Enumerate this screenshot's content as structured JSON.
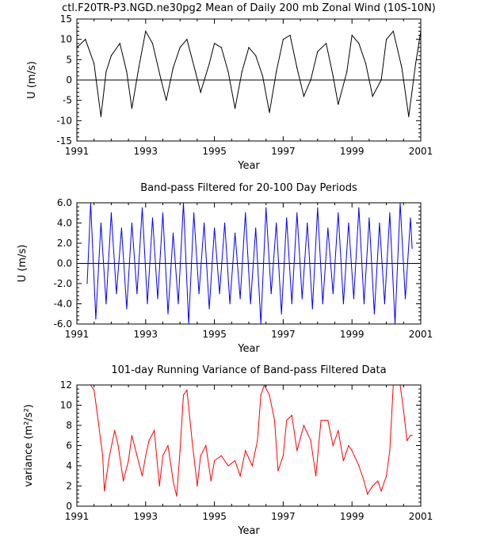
{
  "chart_data": [
    {
      "type": "line",
      "title": "ctl.F20TR-P3.NGD.ne30pg2 Mean of Daily 200 mb Zonal Wind (10S-10N)",
      "xlabel": "Year",
      "ylabel": "U (m/s)",
      "xlim": [
        1991,
        2001
      ],
      "ylim": [
        -15,
        15
      ],
      "x_ticks": [
        1991,
        1993,
        1995,
        1997,
        1999,
        2001
      ],
      "x_tick_labels": [
        "1991",
        "1993",
        "1995",
        "1997",
        "1999",
        "2001"
      ],
      "y_ticks": [
        -15,
        -10,
        -5,
        0,
        5,
        10,
        15
      ],
      "y_tick_labels": [
        "-15",
        "-10",
        "-5",
        "0",
        "5",
        "10",
        "15"
      ],
      "reference_line": 0,
      "color": "#000000",
      "series": [
        {
          "name": "Daily 200 mb zonal wind",
          "x": [
            1991.0,
            1991.25,
            1991.5,
            1991.7,
            1991.85,
            1992.0,
            1992.25,
            1992.45,
            1992.6,
            1992.8,
            1993.0,
            1993.2,
            1993.45,
            1993.6,
            1993.8,
            1994.0,
            1994.2,
            1994.45,
            1994.6,
            1994.85,
            1995.0,
            1995.2,
            1995.4,
            1995.6,
            1995.8,
            1996.0,
            1996.2,
            1996.4,
            1996.6,
            1996.8,
            1997.0,
            1997.2,
            1997.4,
            1997.6,
            1997.8,
            1998.0,
            1998.25,
            1998.45,
            1998.6,
            1998.85,
            1999.0,
            1999.2,
            1999.4,
            1999.6,
            1999.85,
            2000.0,
            2000.2,
            2000.45,
            2000.65,
            2000.85,
            2001.0
          ],
          "values": [
            8,
            10,
            4,
            -9,
            2,
            6,
            9,
            2,
            -7,
            3,
            12,
            9,
            0,
            -5,
            3,
            8,
            10,
            2,
            -3,
            4,
            9,
            8,
            2,
            -7,
            2,
            8,
            6,
            1,
            -8,
            2,
            10,
            11,
            3,
            -4,
            0,
            7,
            9,
            1,
            -6,
            2,
            11,
            9,
            4,
            -4,
            0,
            10,
            12,
            3,
            -9,
            4,
            12
          ]
        }
      ]
    },
    {
      "type": "line",
      "title": "Band-pass Filtered for 20-100 Day Periods",
      "xlabel": "Year",
      "ylabel": "U (m/s)",
      "xlim": [
        1991,
        2001
      ],
      "ylim": [
        -6,
        6
      ],
      "x_ticks": [
        1991,
        1993,
        1995,
        1997,
        1999,
        2001
      ],
      "x_tick_labels": [
        "1991",
        "1993",
        "1995",
        "1997",
        "1999",
        "2001"
      ],
      "y_ticks": [
        -6,
        -4,
        -2,
        0,
        2,
        4,
        6
      ],
      "y_tick_labels": [
        "-6.0",
        "-4.0",
        "-2.0",
        "0.0",
        "2.0",
        "4.0",
        "6.0"
      ],
      "reference_line": 0,
      "color": "#0000ff",
      "series": [
        {
          "name": "20-100 day band-pass filtered wind",
          "x": [
            1991.3,
            1991.4,
            1991.55,
            1991.7,
            1991.85,
            1992.0,
            1992.15,
            1992.3,
            1992.45,
            1992.6,
            1992.75,
            1992.9,
            1993.05,
            1993.2,
            1993.35,
            1993.5,
            1993.65,
            1993.8,
            1993.95,
            1994.1,
            1994.25,
            1994.4,
            1994.55,
            1994.7,
            1994.85,
            1995.0,
            1995.15,
            1995.3,
            1995.45,
            1995.6,
            1995.75,
            1995.9,
            1996.05,
            1996.2,
            1996.35,
            1996.5,
            1996.65,
            1996.8,
            1996.95,
            1997.1,
            1997.25,
            1997.4,
            1997.55,
            1997.7,
            1997.85,
            1998.0,
            1998.15,
            1998.3,
            1998.45,
            1998.6,
            1998.75,
            1998.9,
            1999.05,
            1999.2,
            1999.35,
            1999.5,
            1999.65,
            1999.8,
            1999.95,
            2000.1,
            2000.25,
            2000.4,
            2000.55,
            2000.7,
            2000.75
          ],
          "values": [
            -2,
            6,
            -5.5,
            4,
            -4,
            5,
            -3,
            3.5,
            -4.5,
            4,
            -3,
            5.5,
            -4,
            4.5,
            -3.5,
            5,
            -5,
            3,
            -4,
            6,
            -6,
            5,
            -3,
            4,
            -4.5,
            3.5,
            -3,
            4,
            -4,
            3,
            -3.5,
            5,
            -4,
            3.5,
            -6,
            5.5,
            -3,
            4,
            -5,
            4.5,
            -4,
            5,
            -3.5,
            4,
            -4.5,
            5.5,
            -4,
            3.5,
            -3,
            5,
            -4,
            4,
            -3.5,
            5.5,
            -4,
            4.5,
            -5,
            4,
            -4,
            5,
            -6,
            6,
            -3.5,
            4.5,
            1.5
          ]
        }
      ]
    },
    {
      "type": "line",
      "title": "101-day Running Variance of Band-pass Filtered Data",
      "xlabel": "Year",
      "ylabel": "variance (m²/s²)",
      "xlim": [
        1991,
        2001
      ],
      "ylim": [
        0,
        12
      ],
      "x_ticks": [
        1991,
        1993,
        1995,
        1997,
        1999,
        2001
      ],
      "x_tick_labels": [
        "1991",
        "1993",
        "1995",
        "1997",
        "1999",
        "2001"
      ],
      "y_ticks": [
        0,
        2,
        4,
        6,
        8,
        10,
        12
      ],
      "y_tick_labels": [
        "0",
        "2",
        "4",
        "6",
        "8",
        "10",
        "12"
      ],
      "color": "#ff0000",
      "series": [
        {
          "name": "101-day running variance",
          "x": [
            1991.4,
            1991.5,
            1991.6,
            1991.75,
            1991.8,
            1991.95,
            1992.1,
            1992.2,
            1992.35,
            1992.5,
            1992.6,
            1992.75,
            1992.9,
            1993.0,
            1993.1,
            1993.25,
            1993.4,
            1993.5,
            1993.65,
            1993.8,
            1993.9,
            1994.0,
            1994.1,
            1994.2,
            1994.35,
            1994.5,
            1994.6,
            1994.75,
            1994.9,
            1995.0,
            1995.2,
            1995.4,
            1995.6,
            1995.75,
            1995.9,
            1996.1,
            1996.25,
            1996.35,
            1996.45,
            1996.6,
            1996.75,
            1996.85,
            1997.0,
            1997.1,
            1997.25,
            1997.4,
            1997.6,
            1997.8,
            1997.95,
            1998.1,
            1998.3,
            1998.45,
            1998.6,
            1998.75,
            1998.9,
            1999.0,
            1999.2,
            1999.35,
            1999.45,
            1999.6,
            1999.75,
            1999.85,
            2000.0,
            2000.1,
            2000.2,
            2000.4,
            2000.5,
            2000.6,
            2000.7,
            2000.75
          ],
          "values": [
            12,
            11.5,
            9,
            5,
            1.5,
            5,
            7.5,
            6,
            2.5,
            4.5,
            7,
            5,
            3,
            5,
            6.5,
            7.5,
            2,
            5,
            6,
            2.5,
            1,
            5.5,
            11,
            11.5,
            6.5,
            2,
            5,
            6,
            2.5,
            4.5,
            5,
            4,
            4.5,
            3,
            5.5,
            4,
            6.5,
            11,
            12,
            11,
            8.5,
            3.5,
            5,
            8.5,
            9,
            5.5,
            8,
            6.5,
            3,
            8.5,
            8.5,
            6,
            7.5,
            4.5,
            6,
            5.5,
            4,
            2.5,
            1.2,
            2,
            2.5,
            1.5,
            3,
            5.5,
            12,
            12,
            9.5,
            6.5,
            7,
            7
          ]
        }
      ]
    }
  ]
}
